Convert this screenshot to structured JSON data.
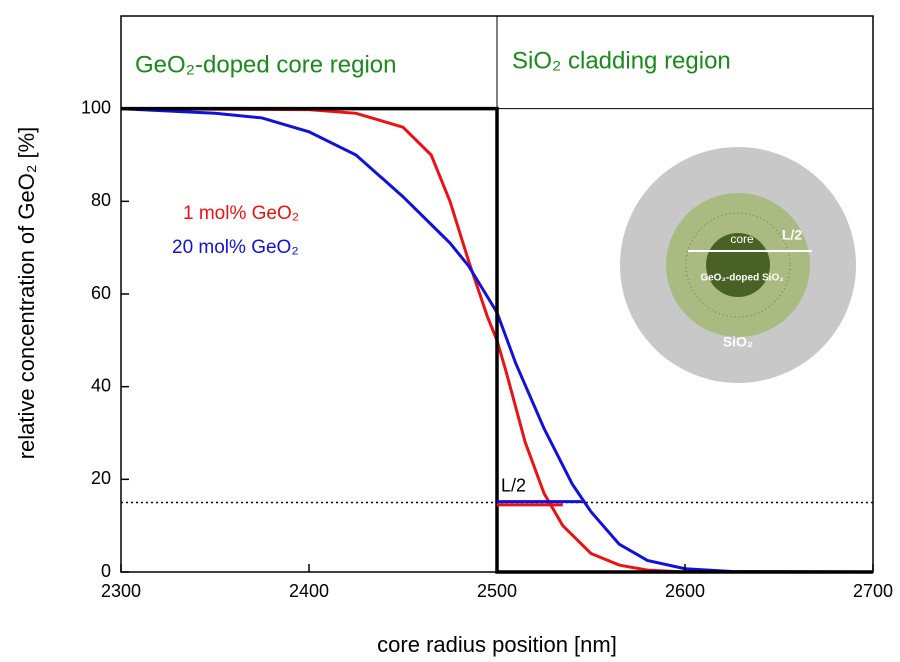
{
  "chart_data": {
    "type": "line",
    "x_label": "core radius position [nm]",
    "y_label": "relative concentration of GeO₂ [%]",
    "xlim": [
      2300,
      2700
    ],
    "ylim": [
      0,
      120
    ],
    "xticks": [
      2300,
      2400,
      2500,
      2600,
      2700
    ],
    "yticks": [
      0,
      20,
      40,
      60,
      80,
      100
    ],
    "series": [
      {
        "name": "1 mol% GeO₂",
        "color": "#ee1111",
        "x": [
          2300,
          2400,
          2425,
          2450,
          2465,
          2475,
          2485,
          2495,
          2500,
          2505,
          2515,
          2525,
          2535,
          2550,
          2565,
          2580,
          2600,
          2700
        ],
        "values": [
          100,
          99.8,
          99,
          96,
          90,
          80,
          67,
          55,
          50,
          43,
          28,
          17,
          10,
          4,
          1.5,
          0.4,
          0,
          0
        ]
      },
      {
        "name": "20 mol% GeO₂",
        "color": "#1111dd",
        "x": [
          2300,
          2350,
          2375,
          2400,
          2425,
          2450,
          2465,
          2475,
          2485,
          2500,
          2510,
          2525,
          2540,
          2550,
          2565,
          2580,
          2600,
          2625,
          2700
        ],
        "values": [
          100,
          99,
          98,
          95,
          90,
          81,
          75,
          71,
          66,
          56,
          45,
          31,
          19,
          13,
          6,
          2.5,
          0.7,
          0.1,
          0
        ]
      },
      {
        "color": "#000000",
        "x": [
          2300,
          2500,
          2500,
          2700
        ],
        "values": [
          100,
          100,
          0,
          0
        ]
      },
      {
        "color": "#ee1111",
        "x": [
          2500,
          2535
        ],
        "values": [
          14.5,
          14.5
        ]
      },
      {
        "color": "#1111dd",
        "x": [
          2500,
          2545
        ],
        "values": [
          15.2,
          15.2
        ]
      }
    ],
    "reference_line": 15,
    "annotation": "L/2",
    "regions": [
      "GeO₂-doped core region",
      "SiO₂ cladding region"
    ],
    "inset": {
      "core": "core",
      "width": "L/2",
      "doped": "GeO₂-doped SiO₂",
      "cladding": "SiO₂"
    }
  }
}
